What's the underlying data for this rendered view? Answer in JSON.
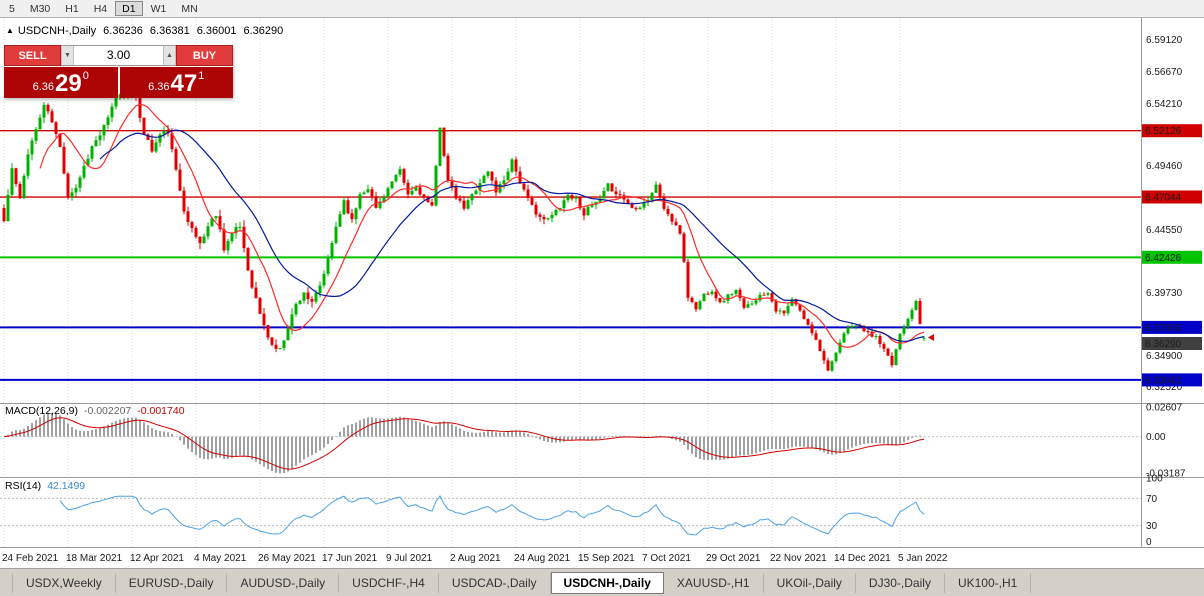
{
  "toolbar": {
    "timeframes": [
      {
        "label": "5",
        "active": false
      },
      {
        "label": "M30",
        "active": false
      },
      {
        "label": "H1",
        "active": false
      },
      {
        "label": "H4",
        "active": false
      },
      {
        "label": "D1",
        "active": true
      },
      {
        "label": "W1",
        "active": false
      },
      {
        "label": "MN",
        "active": false
      }
    ]
  },
  "chart_header": {
    "collapse_icon": "▲",
    "symbol": "USDCNH-,Daily",
    "open": "6.36236",
    "high": "6.36381",
    "low": "6.36001",
    "close": "6.36290"
  },
  "trade_panel": {
    "sell_label": "SELL",
    "buy_label": "BUY",
    "volume": "3.00",
    "spinner_down": "▼",
    "spinner_up": "▲",
    "sell_price_big": "6.36",
    "sell_price_pips": "29",
    "sell_price_point": "0",
    "buy_price_big": "6.36",
    "buy_price_pips": "47",
    "buy_price_point": "1"
  },
  "macd_panel": {
    "label": "MACD(12,26,9)",
    "value_main": "-0.002207",
    "value_signal": "-0.001740",
    "axis_labels": [
      {
        "text": "0.02607",
        "value": 0.02607
      },
      {
        "text": "0.00",
        "value": 0
      },
      {
        "text": "-0.03187",
        "value": -0.03187
      }
    ]
  },
  "rsi_panel": {
    "label": "RSI(14)",
    "value": "42.1499",
    "axis_labels": [
      {
        "text": "100",
        "value": 100
      },
      {
        "text": "70",
        "value": 70
      },
      {
        "text": "30",
        "value": 30
      },
      {
        "text": "0",
        "value": 0
      }
    ],
    "level_lines": [
      70,
      30
    ]
  },
  "price_axis_labels": [
    {
      "text": "6.59120",
      "value": 6.5912
    },
    {
      "text": "6.56670",
      "value": 6.5667
    },
    {
      "text": "6.54210",
      "value": 6.5421
    },
    {
      "text": "6.49460",
      "value": 6.4946
    },
    {
      "text": "6.44550",
      "value": 6.4455
    },
    {
      "text": "6.39730",
      "value": 6.3973
    },
    {
      "text": "6.34900",
      "value": 6.349
    },
    {
      "text": "6.32520",
      "value": 6.3252
    }
  ],
  "tabs": [
    {
      "label": "USDX,Weekly",
      "active": false
    },
    {
      "label": "EURUSD-,Daily",
      "active": false
    },
    {
      "label": "AUDUSD-,Daily",
      "active": false
    },
    {
      "label": "USDCHF-,H4",
      "active": false
    },
    {
      "label": "USDCAD-,Daily",
      "active": false
    },
    {
      "label": "USDCNH-,Daily",
      "active": true
    },
    {
      "label": "XAUUSD-,H1",
      "active": false
    },
    {
      "label": "UKOil-,Daily",
      "active": false
    },
    {
      "label": "DJ30-,Daily",
      "active": false
    },
    {
      "label": "UK100-,H1",
      "active": false
    }
  ],
  "colors": {
    "bull": "#00b200",
    "bear": "#e00000",
    "ma_fast": "#ff2a2a",
    "ma_slow": "#001a9e",
    "macd_hist": "#a0a0a0",
    "macd_signal": "#d00000",
    "rsi_line": "#4da2e8"
  },
  "chart_data": {
    "type": "candlestick",
    "symbol": "USDCNH-",
    "timeframe": "Daily",
    "price_range": {
      "top": 6.606,
      "bottom": 6.3135
    },
    "x_labels": [
      "24 Feb 2021",
      "18 Mar 2021",
      "12 Apr 2021",
      "4 May 2021",
      "26 May 2021",
      "17 Jun 2021",
      "9 Jul 2021",
      "2 Aug 2021",
      "24 Aug 2021",
      "15 Sep 2021",
      "7 Oct 2021",
      "29 Oct 2021",
      "22 Nov 2021",
      "14 Dec 2021",
      "5 Jan 2022"
    ],
    "x_label_step": 16,
    "candles_count": 231,
    "seed": 11,
    "volatility": [
      [
        0,
        0.0042
      ],
      [
        44,
        0.0048
      ],
      [
        80,
        0.0036
      ],
      [
        168,
        0.0026
      ]
    ],
    "close_anchors": [
      [
        0,
        6.452
      ],
      [
        2,
        6.492
      ],
      [
        4,
        6.468
      ],
      [
        6,
        6.505
      ],
      [
        8,
        6.522
      ],
      [
        10,
        6.541
      ],
      [
        12,
        6.528
      ],
      [
        14,
        6.508
      ],
      [
        16,
        6.472
      ],
      [
        18,
        6.478
      ],
      [
        20,
        6.494
      ],
      [
        22,
        6.509
      ],
      [
        24,
        6.518
      ],
      [
        26,
        6.53
      ],
      [
        28,
        6.547
      ],
      [
        31,
        6.551
      ],
      [
        33,
        6.544
      ],
      [
        35,
        6.52
      ],
      [
        37,
        6.506
      ],
      [
        39,
        6.518
      ],
      [
        41,
        6.521
      ],
      [
        43,
        6.49
      ],
      [
        45,
        6.462
      ],
      [
        47,
        6.445
      ],
      [
        49,
        6.435
      ],
      [
        51,
        6.448
      ],
      [
        53,
        6.458
      ],
      [
        55,
        6.432
      ],
      [
        57,
        6.442
      ],
      [
        59,
        6.448
      ],
      [
        61,
        6.415
      ],
      [
        63,
        6.392
      ],
      [
        65,
        6.371
      ],
      [
        67,
        6.357
      ],
      [
        69,
        6.353
      ],
      [
        71,
        6.372
      ],
      [
        73,
        6.388
      ],
      [
        75,
        6.398
      ],
      [
        77,
        6.388
      ],
      [
        79,
        6.402
      ],
      [
        81,
        6.422
      ],
      [
        83,
        6.448
      ],
      [
        85,
        6.468
      ],
      [
        87,
        6.452
      ],
      [
        89,
        6.473
      ],
      [
        91,
        6.478
      ],
      [
        93,
        6.462
      ],
      [
        95,
        6.472
      ],
      [
        97,
        6.482
      ],
      [
        99,
        6.49
      ],
      [
        101,
        6.472
      ],
      [
        103,
        6.478
      ],
      [
        105,
        6.47
      ],
      [
        107,
        6.462
      ],
      [
        109,
        6.525
      ],
      [
        111,
        6.482
      ],
      [
        113,
        6.47
      ],
      [
        115,
        6.462
      ],
      [
        117,
        6.472
      ],
      [
        119,
        6.482
      ],
      [
        121,
        6.49
      ],
      [
        123,
        6.475
      ],
      [
        125,
        6.484
      ],
      [
        127,
        6.499
      ],
      [
        129,
        6.482
      ],
      [
        131,
        6.468
      ],
      [
        133,
        6.459
      ],
      [
        135,
        6.452
      ],
      [
        137,
        6.456
      ],
      [
        139,
        6.464
      ],
      [
        141,
        6.472
      ],
      [
        143,
        6.469
      ],
      [
        145,
        6.458
      ],
      [
        147,
        6.464
      ],
      [
        149,
        6.468
      ],
      [
        151,
        6.479
      ],
      [
        153,
        6.474
      ],
      [
        155,
        6.469
      ],
      [
        157,
        6.462
      ],
      [
        159,
        6.464
      ],
      [
        161,
        6.469
      ],
      [
        163,
        6.479
      ],
      [
        165,
        6.462
      ],
      [
        167,
        6.452
      ],
      [
        169,
        6.443
      ],
      [
        170,
        6.421
      ],
      [
        171,
        6.394
      ],
      [
        173,
        6.385
      ],
      [
        175,
        6.396
      ],
      [
        177,
        6.399
      ],
      [
        179,
        6.389
      ],
      [
        181,
        6.395
      ],
      [
        183,
        6.399
      ],
      [
        185,
        6.385
      ],
      [
        187,
        6.39
      ],
      [
        189,
        6.395
      ],
      [
        191,
        6.398
      ],
      [
        193,
        6.384
      ],
      [
        195,
        6.381
      ],
      [
        197,
        6.392
      ],
      [
        199,
        6.383
      ],
      [
        201,
        6.372
      ],
      [
        203,
        6.362
      ],
      [
        205,
        6.345
      ],
      [
        206,
        6.339
      ],
      [
        208,
        6.35
      ],
      [
        210,
        6.366
      ],
      [
        212,
        6.373
      ],
      [
        214,
        6.371
      ],
      [
        216,
        6.366
      ],
      [
        218,
        6.363
      ],
      [
        220,
        6.353
      ],
      [
        222,
        6.342
      ],
      [
        224,
        6.366
      ],
      [
        226,
        6.378
      ],
      [
        228,
        6.392
      ],
      [
        229,
        6.372
      ],
      [
        230,
        6.3629
      ]
    ],
    "last_candle": {
      "open": 6.36236,
      "high": 6.36381,
      "low": 6.36001,
      "close": 6.3629
    },
    "levels": [
      {
        "price": 6.52126,
        "label": "6.52126",
        "color": "#d00000",
        "width": 1.4
      },
      {
        "price": 6.47044,
        "label": "6.47044",
        "color": "#d00000",
        "width": 1.4
      },
      {
        "price": 6.42426,
        "label": "6.42426",
        "color": "#00c400",
        "width": 2
      },
      {
        "price": 6.37063,
        "label": "6.37063",
        "color": "#0000c8",
        "width": 2
      },
      {
        "price": 6.33041,
        "label": "6.33041",
        "color": "#0000c8",
        "width": 2
      }
    ],
    "current_price": {
      "value": 6.3629,
      "label": "6.36290",
      "color": "#404040"
    },
    "ma_fast_period": 10,
    "ma_slow_period": 25,
    "macd": {
      "fast": 12,
      "slow": 26,
      "signal": 9,
      "range_top": 0.0285,
      "range_bottom": -0.0335
    },
    "rsi": {
      "period": 14
    }
  }
}
